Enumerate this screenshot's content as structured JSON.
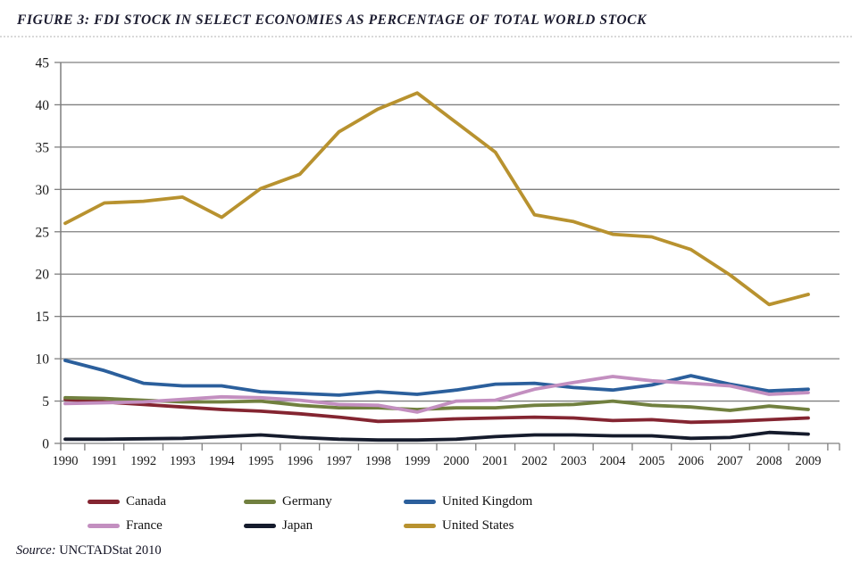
{
  "figure": {
    "title": "FIGURE 3: FDI STOCK IN SELECT ECONOMIES AS PERCENTAGE OF TOTAL WORLD STOCK",
    "source_prefix": "Source:",
    "source_text": " UNCTADStat 2010"
  },
  "chart_data": {
    "type": "line",
    "title": "FIGURE 3: FDI STOCK IN SELECT ECONOMIES AS PERCENTAGE OF TOTAL WORLD STOCK",
    "xlabel": "",
    "ylabel": "",
    "x": [
      1990,
      1991,
      1992,
      1993,
      1994,
      1995,
      1996,
      1997,
      1998,
      1999,
      2000,
      2001,
      2002,
      2003,
      2004,
      2005,
      2006,
      2007,
      2008,
      2009
    ],
    "ylim": [
      0,
      45
    ],
    "ytick_step": 5,
    "grid": "horizontal",
    "gridline_color": "#7f7f7f",
    "axis_text_color": "#1a1a1a",
    "legend_position": "bottom",
    "series": [
      {
        "name": "Canada",
        "color": "#842531",
        "values": [
          5.2,
          4.9,
          4.6,
          4.3,
          4.0,
          3.8,
          3.5,
          3.1,
          2.6,
          2.7,
          2.9,
          3.0,
          3.1,
          3.0,
          2.7,
          2.8,
          2.5,
          2.6,
          2.8,
          3.0
        ]
      },
      {
        "name": "Germany",
        "color": "#71803f",
        "values": [
          5.4,
          5.3,
          5.1,
          4.9,
          4.9,
          5.0,
          4.5,
          4.2,
          4.2,
          4.0,
          4.2,
          4.2,
          4.5,
          4.6,
          5.0,
          4.5,
          4.3,
          3.9,
          4.4,
          4.0
        ]
      },
      {
        "name": "United Kingdom",
        "color": "#2b5f9c",
        "values": [
          9.8,
          8.6,
          7.1,
          6.8,
          6.8,
          6.1,
          5.9,
          5.7,
          6.1,
          5.8,
          6.3,
          7.0,
          7.1,
          6.6,
          6.3,
          6.9,
          8.0,
          7.0,
          6.2,
          6.4
        ]
      },
      {
        "name": "France",
        "color": "#c38fc0",
        "values": [
          4.7,
          4.8,
          4.9,
          5.2,
          5.5,
          5.4,
          5.1,
          4.6,
          4.5,
          3.7,
          5.0,
          5.1,
          6.4,
          7.2,
          7.9,
          7.4,
          7.1,
          6.8,
          5.8,
          6.0
        ]
      },
      {
        "name": "Japan",
        "color": "#151b2c",
        "values": [
          0.5,
          0.5,
          0.55,
          0.6,
          0.8,
          1.0,
          0.7,
          0.5,
          0.4,
          0.4,
          0.5,
          0.8,
          1.0,
          1.0,
          0.9,
          0.9,
          0.6,
          0.7,
          1.3,
          1.1
        ]
      },
      {
        "name": "United States",
        "color": "#b8922f",
        "values": [
          26.0,
          28.4,
          28.6,
          29.1,
          26.7,
          30.1,
          31.8,
          36.8,
          39.5,
          41.4,
          37.9,
          34.4,
          27.0,
          26.2,
          24.7,
          24.4,
          22.9,
          19.9,
          16.4,
          17.6
        ]
      }
    ]
  }
}
